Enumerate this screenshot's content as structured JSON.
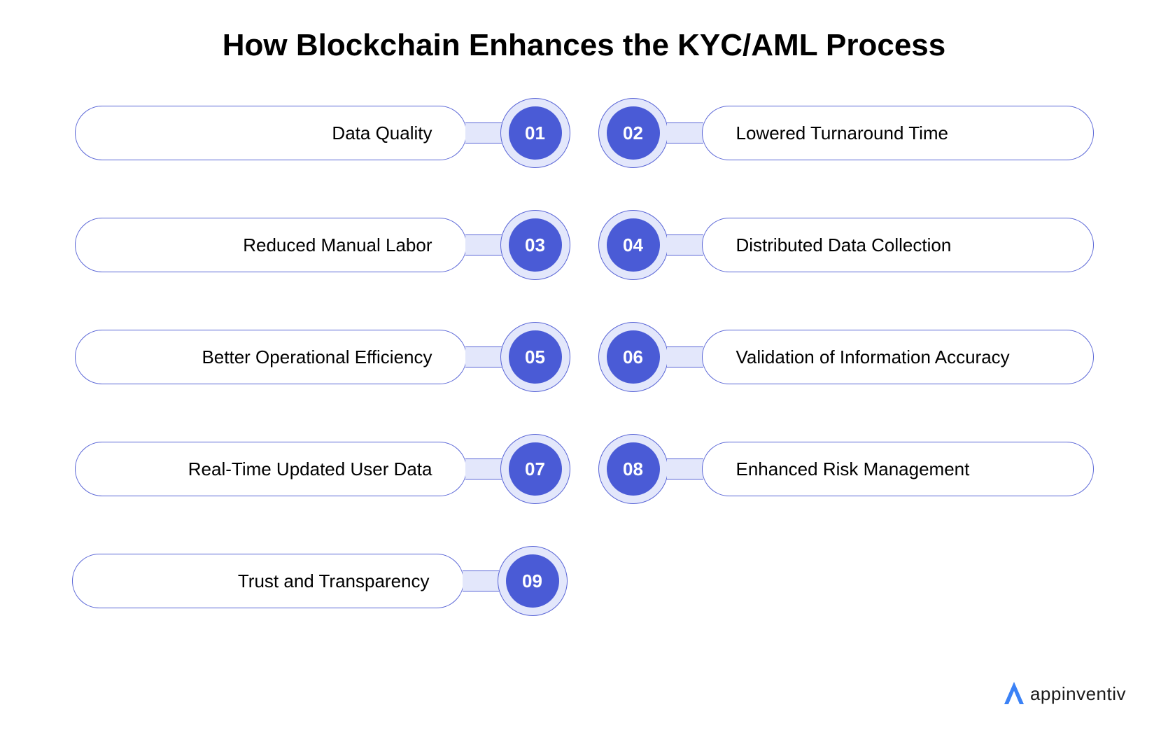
{
  "title": "How Blockchain Enhances the KYC/AML Process",
  "title_fontsize": 44,
  "title_color": "#000000",
  "background_color": "#ffffff",
  "items": [
    {
      "num": "01",
      "label": "Data Quality",
      "side": "left"
    },
    {
      "num": "02",
      "label": "Lowered Turnaround Time",
      "side": "right"
    },
    {
      "num": "03",
      "label": "Reduced Manual Labor",
      "side": "left"
    },
    {
      "num": "04",
      "label": "Distributed Data Collection",
      "side": "right"
    },
    {
      "num": "05",
      "label": "Better Operational Efficiency",
      "side": "left"
    },
    {
      "num": "06",
      "label": "Validation of Information Accuracy",
      "side": "right"
    },
    {
      "num": "07",
      "label": "Real-Time Updated User Data",
      "side": "left"
    },
    {
      "num": "08",
      "label": "Enhanced Risk Management",
      "side": "right"
    },
    {
      "num": "09",
      "label": "Trust and Transparency",
      "side": "left"
    }
  ],
  "style": {
    "pill_width": 560,
    "pill_height": 78,
    "pill_border_color": "#5864d6",
    "pill_border_width": 1.5,
    "pill_background": "#ffffff",
    "pill_text_color": "#000000",
    "pill_fontsize": 26,
    "pill_padding_h": 48,
    "connector_width": 52,
    "connector_height": 30,
    "connector_fill": "#e3e7fb",
    "connector_border_color": "#5864d6",
    "connector_border_width": 1.5,
    "badge_outer_size": 100,
    "badge_outer_fill": "#e3e7fb",
    "badge_outer_border_color": "#5864d6",
    "badge_outer_border_width": 1.5,
    "badge_inner_size": 76,
    "badge_inner_fill": "#4a5bd6",
    "badge_inner_text_color": "#ffffff",
    "badge_fontsize": 26,
    "row_gap": 60,
    "col_gap": 40
  },
  "logo": {
    "text": "appinventiv",
    "text_color": "#1a1a1a",
    "accent_color": "#3b82f6",
    "fontsize": 26
  }
}
